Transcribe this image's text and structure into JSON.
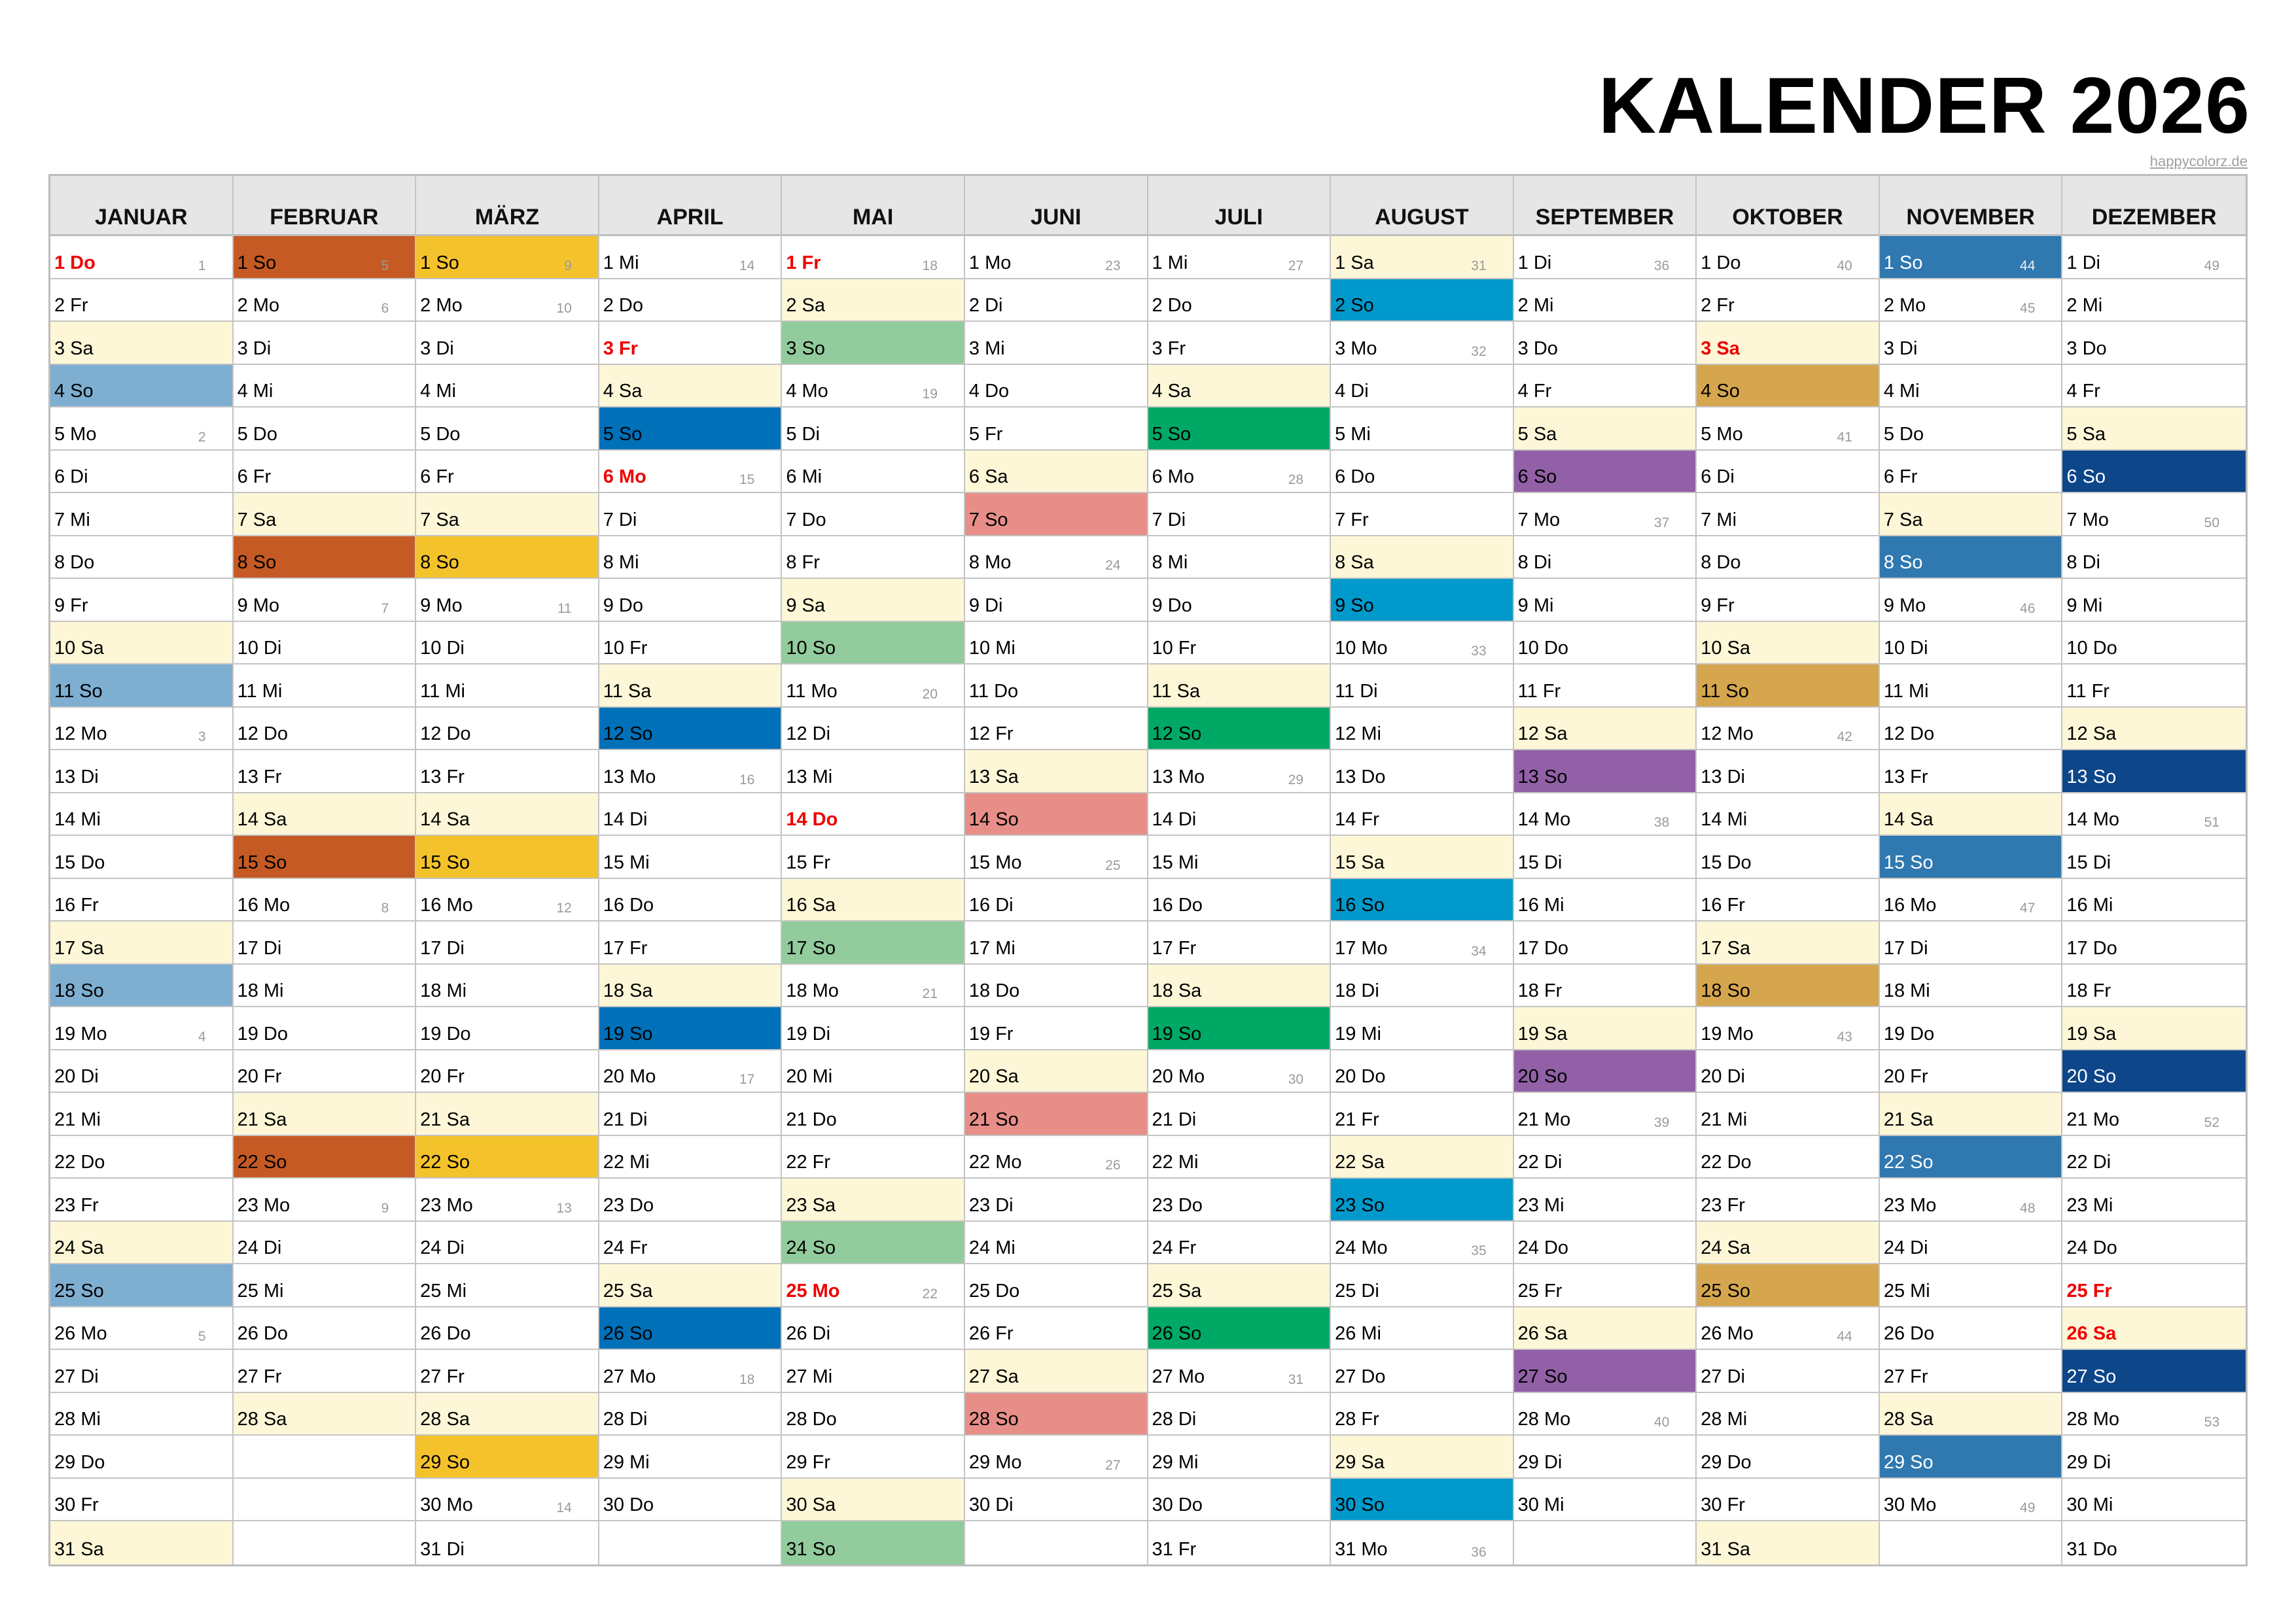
{
  "header": {
    "title": "KALENDER 2026",
    "credit": "happycolorz.de"
  },
  "colors": {
    "saturday_bg": "#fdf7d7",
    "holiday_text": "#ee0000",
    "week_number_text": "#9a9a9a",
    "header_bg": "#e6e6e6",
    "grid_line": "#c4c4c4"
  },
  "months": [
    {
      "name": "JANUAR",
      "sunday_color": "#7eaed0",
      "sunday_text_light": false,
      "first_weekday": 4,
      "days": 31,
      "holidays": [
        1
      ]
    },
    {
      "name": "FEBRUAR",
      "sunday_color": "#c55a24",
      "sunday_text_light": false,
      "first_weekday": 0,
      "days": 28,
      "holidays": []
    },
    {
      "name": "MÄRZ",
      "sunday_color": "#f4c22b",
      "sunday_text_light": false,
      "first_weekday": 0,
      "days": 31,
      "holidays": []
    },
    {
      "name": "APRIL",
      "sunday_color": "#0070b8",
      "sunday_text_light": false,
      "first_weekday": 3,
      "days": 30,
      "holidays": [
        3,
        6
      ]
    },
    {
      "name": "MAI",
      "sunday_color": "#92cb9c",
      "sunday_text_light": false,
      "first_weekday": 5,
      "days": 31,
      "holidays": [
        1,
        14,
        25
      ]
    },
    {
      "name": "JUNI",
      "sunday_color": "#e78e88",
      "sunday_text_light": false,
      "first_weekday": 1,
      "days": 30,
      "holidays": []
    },
    {
      "name": "JULI",
      "sunday_color": "#00a866",
      "sunday_text_light": false,
      "first_weekday": 3,
      "days": 31,
      "holidays": []
    },
    {
      "name": "AUGUST",
      "sunday_color": "#0099cc",
      "sunday_text_light": false,
      "first_weekday": 6,
      "days": 31,
      "holidays": []
    },
    {
      "name": "SEPTEMBER",
      "sunday_color": "#9160a6",
      "sunday_text_light": false,
      "first_weekday": 2,
      "days": 30,
      "holidays": []
    },
    {
      "name": "OKTOBER",
      "sunday_color": "#d6a64f",
      "sunday_text_light": false,
      "first_weekday": 4,
      "days": 31,
      "holidays": [
        3
      ]
    },
    {
      "name": "NOVEMBER",
      "sunday_color": "#2f78b0",
      "sunday_text_light": true,
      "first_weekday": 0,
      "days": 30,
      "holidays": []
    },
    {
      "name": "DEZEMBER",
      "sunday_color": "#0d4689",
      "sunday_text_light": true,
      "first_weekday": 2,
      "days": 31,
      "holidays": [
        25,
        26
      ]
    }
  ],
  "weekday_abbr": [
    "So",
    "Mo",
    "Di",
    "Mi",
    "Do",
    "Fr",
    "Sa"
  ],
  "week_numbers": {
    "JANUAR": {
      "1": "1",
      "5": "2",
      "12": "3",
      "19": "4",
      "26": "5"
    },
    "FEBRUAR": {
      "1": "5",
      "2": "6",
      "9": "7",
      "16": "8",
      "23": "9"
    },
    "MÄRZ": {
      "1": "9",
      "2": "10",
      "9": "11",
      "16": "12",
      "23": "13",
      "30": "14"
    },
    "APRIL": {
      "1": "14",
      "6": "15",
      "13": "16",
      "20": "17",
      "27": "18"
    },
    "MAI": {
      "1": "18",
      "4": "19",
      "11": "20",
      "18": "21",
      "25": "22"
    },
    "JUNI": {
      "1": "23",
      "8": "24",
      "15": "25",
      "22": "26",
      "29": "27"
    },
    "JULI": {
      "1": "27",
      "6": "28",
      "13": "29",
      "20": "30",
      "27": "31"
    },
    "AUGUST": {
      "1": "31",
      "3": "32",
      "10": "33",
      "17": "34",
      "24": "35",
      "31": "36"
    },
    "SEPTEMBER": {
      "1": "36",
      "7": "37",
      "14": "38",
      "21": "39",
      "28": "40"
    },
    "OKTOBER": {
      "1": "40",
      "5": "41",
      "12": "42",
      "19": "43",
      "26": "44"
    },
    "NOVEMBER": {
      "1": "44",
      "2": "45",
      "9": "46",
      "16": "47",
      "23": "48",
      "30": "49"
    },
    "DEZEMBER": {
      "1": "49",
      "7": "50",
      "14": "51",
      "21": "52",
      "28": "53"
    }
  }
}
